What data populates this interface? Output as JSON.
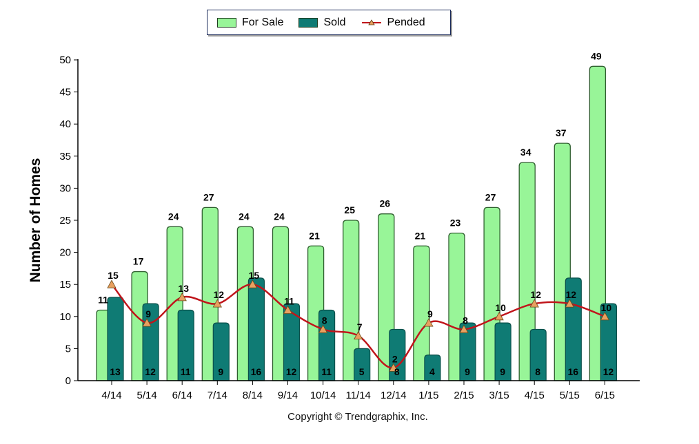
{
  "chart_data": {
    "type": "bar",
    "ylabel": "Number of Homes",
    "xlabel": "",
    "ylim": [
      0,
      50
    ],
    "yticks": [
      0,
      5,
      10,
      15,
      20,
      25,
      30,
      35,
      40,
      45,
      50
    ],
    "grid": false,
    "legend_position": "top-center",
    "categories": [
      "4/14",
      "5/14",
      "6/14",
      "7/14",
      "8/14",
      "9/14",
      "10/14",
      "11/14",
      "12/14",
      "1/15",
      "2/15",
      "3/15",
      "4/15",
      "5/15",
      "6/15"
    ],
    "series": [
      {
        "name": "For Sale",
        "kind": "bar",
        "color": "#98f598",
        "values": [
          11,
          17,
          24,
          27,
          24,
          24,
          21,
          25,
          26,
          21,
          23,
          27,
          34,
          37,
          49
        ]
      },
      {
        "name": "Sold",
        "kind": "bar",
        "color": "#0f7b74",
        "values": [
          13,
          12,
          11,
          9,
          16,
          12,
          11,
          5,
          8,
          4,
          9,
          9,
          8,
          16,
          12
        ]
      },
      {
        "name": "Pended",
        "kind": "line",
        "color": "#c0151b",
        "marker_color": "#e8a060",
        "values": [
          15,
          9,
          13,
          12,
          15,
          11,
          8,
          7,
          2,
          9,
          8,
          10,
          12,
          12,
          10
        ]
      }
    ]
  },
  "footer": {
    "copyright": "Copyright © Trendgraphix, Inc."
  }
}
